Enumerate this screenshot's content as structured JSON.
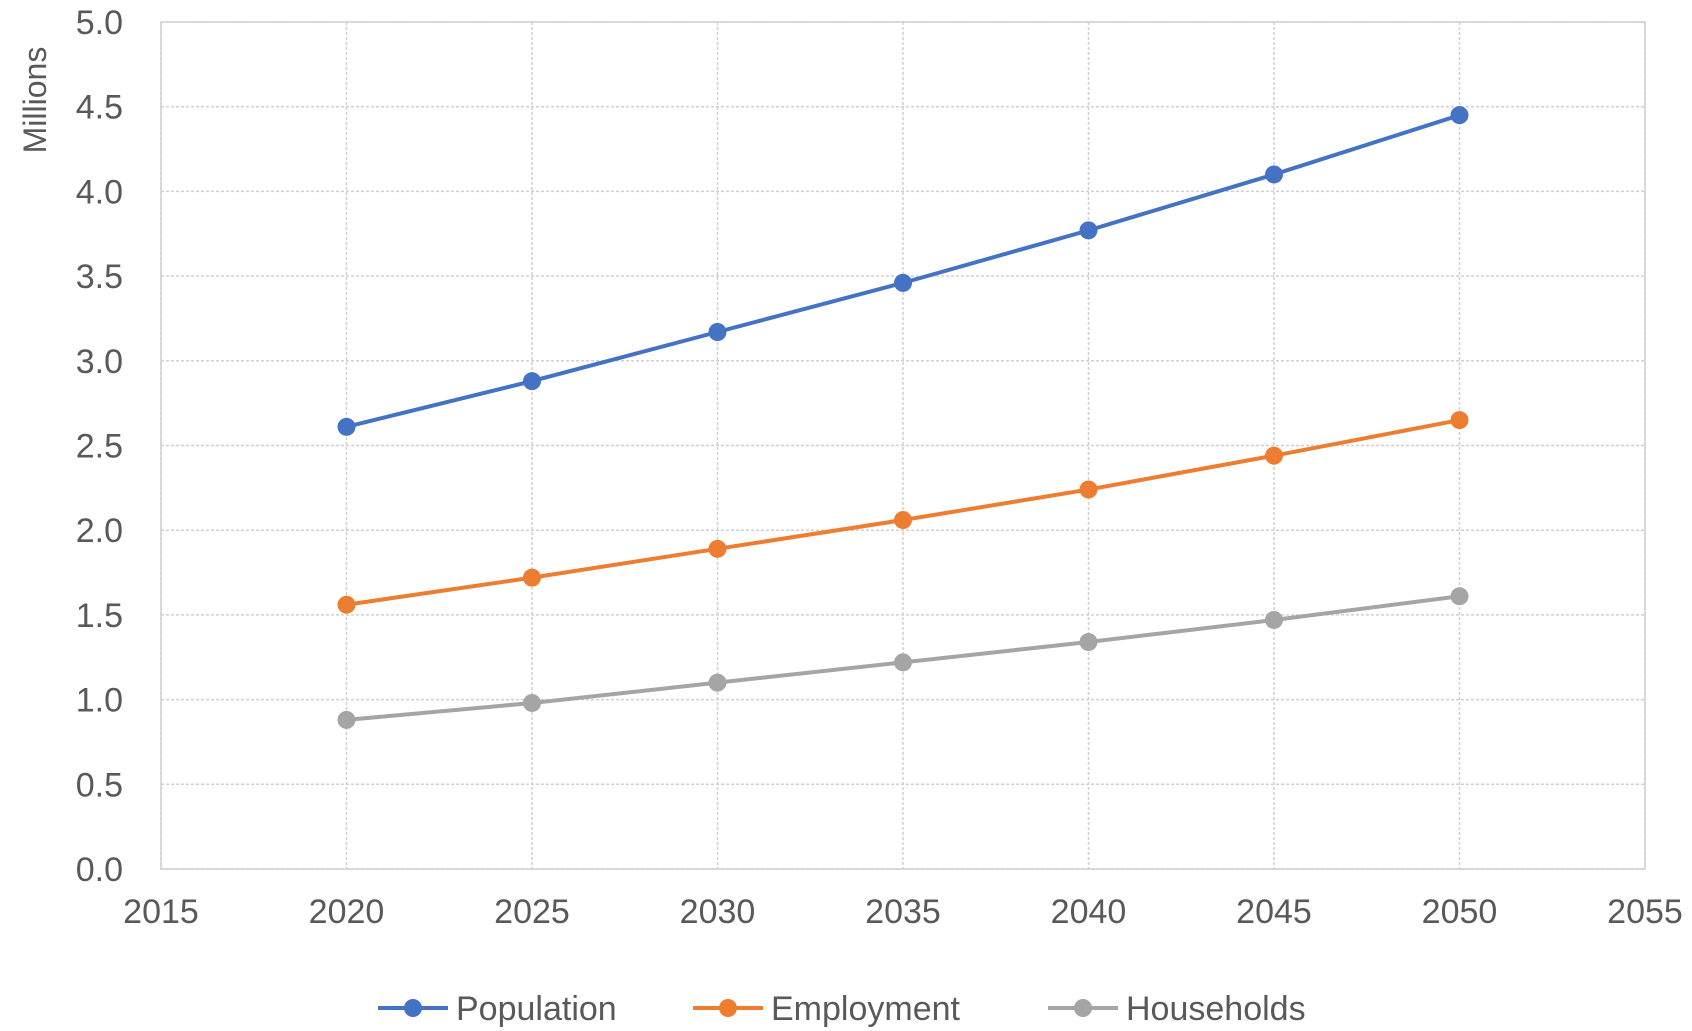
{
  "chart_data": {
    "type": "line",
    "title": "",
    "xlabel": "",
    "ylabel": "Millions",
    "xlim": [
      2015,
      2055
    ],
    "ylim": [
      0,
      5
    ],
    "x_ticks": [
      "2015",
      "2020",
      "2025",
      "2030",
      "2035",
      "2040",
      "2045",
      "2050",
      "2055"
    ],
    "y_ticks": [
      "0.0",
      "0.5",
      "1.0",
      "1.5",
      "2.0",
      "2.5",
      "3.0",
      "3.5",
      "4.0",
      "4.5",
      "5.0"
    ],
    "grid": true,
    "legend_position": "bottom",
    "x": [
      2020,
      2025,
      2030,
      2035,
      2040,
      2045,
      2050
    ],
    "series": [
      {
        "name": "Population",
        "color": "#4472C4",
        "values": [
          2.61,
          2.88,
          3.17,
          3.46,
          3.77,
          4.1,
          4.45
        ]
      },
      {
        "name": "Employment",
        "color": "#ED7D31",
        "values": [
          1.56,
          1.72,
          1.89,
          2.06,
          2.24,
          2.44,
          2.65
        ]
      },
      {
        "name": "Households",
        "color": "#A5A5A5",
        "values": [
          0.88,
          0.98,
          1.1,
          1.22,
          1.34,
          1.47,
          1.61
        ]
      }
    ]
  }
}
